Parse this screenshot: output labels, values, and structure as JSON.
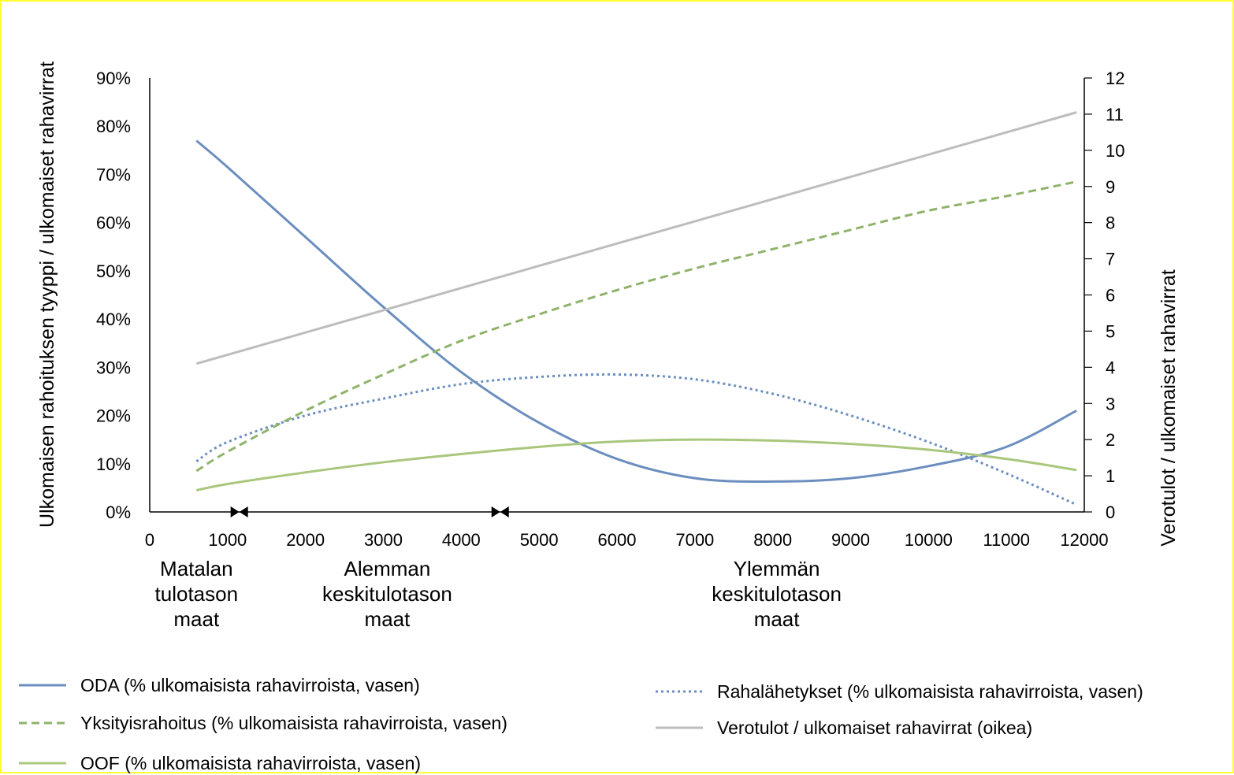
{
  "chart_data": {
    "type": "line",
    "y_left_label": "Ulkomaisen rahoituksen tyyppi / ulkomaiset rahavirrat",
    "y_right_label": "Verotulot / ulkomaiset rahavirrat",
    "x_ticks": [
      "0",
      "1000",
      "2000",
      "3000",
      "4000",
      "5000",
      "6000",
      "7000",
      "8000",
      "9000",
      "10000",
      "11000",
      "12000"
    ],
    "y_left_ticks": [
      "0%",
      "10%",
      "20%",
      "30%",
      "40%",
      "50%",
      "60%",
      "70%",
      "80%",
      "90%"
    ],
    "y_right_ticks": [
      "0",
      "1",
      "2",
      "3",
      "4",
      "5",
      "6",
      "7",
      "8",
      "9",
      "10",
      "11",
      "12"
    ],
    "xlim": [
      0,
      12000
    ],
    "ylim_left": [
      0,
      90
    ],
    "ylim_right": [
      0,
      12
    ],
    "region_labels": [
      {
        "lines": [
          "Matalan",
          "tulotason",
          "maat"
        ],
        "x": 600
      },
      {
        "lines": [
          "Alemman",
          "keskitulotason",
          "maat"
        ],
        "x": 3050
      },
      {
        "lines": [
          "Ylemmän",
          "keskitulotason",
          "maat"
        ],
        "x": 8050
      }
    ],
    "boundaries": [
      1150,
      4500
    ],
    "series": [
      {
        "name": "ODA (% ulkomaisista rahavirroista, vasen)",
        "axis": "left",
        "color": "#6c8ebf",
        "dash": "solid",
        "points": [
          [
            600,
            77
          ],
          [
            1000,
            71.5
          ],
          [
            2000,
            57
          ],
          [
            3000,
            42.5
          ],
          [
            4000,
            29
          ],
          [
            5000,
            18.5
          ],
          [
            6000,
            11
          ],
          [
            7000,
            7
          ],
          [
            8000,
            6.3
          ],
          [
            9000,
            7
          ],
          [
            10000,
            9.5
          ],
          [
            11000,
            13.5
          ],
          [
            11900,
            21
          ]
        ]
      },
      {
        "name": "Rahalähetykset (% ulkomaisista rahavirroista, vasen)",
        "axis": "left",
        "color": "#6c8ebf",
        "dash": "dotted",
        "points": [
          [
            600,
            10.5
          ],
          [
            1000,
            14.5
          ],
          [
            2000,
            20
          ],
          [
            3000,
            23.5
          ],
          [
            4000,
            26.5
          ],
          [
            5000,
            28
          ],
          [
            6000,
            28.5
          ],
          [
            7000,
            27.5
          ],
          [
            8000,
            24.5
          ],
          [
            9000,
            20
          ],
          [
            10000,
            14.5
          ],
          [
            11000,
            8
          ],
          [
            11900,
            1.5
          ]
        ]
      },
      {
        "name": "Yksityisrahoitus (% ulkomaisista rahavirroista, vasen)",
        "axis": "left",
        "color": "#8fb36b",
        "dash": "dashed",
        "points": [
          [
            600,
            8.5
          ],
          [
            1000,
            12.5
          ],
          [
            2000,
            21
          ],
          [
            3000,
            28.5
          ],
          [
            4000,
            35.5
          ],
          [
            5000,
            41
          ],
          [
            6000,
            46
          ],
          [
            7000,
            50.5
          ],
          [
            8000,
            54.5
          ],
          [
            9000,
            58.5
          ],
          [
            10000,
            62.5
          ],
          [
            11000,
            65.5
          ],
          [
            11900,
            68.5
          ]
        ]
      },
      {
        "name": "Verotulot / ulkomaiset rahavirrat (oikea)",
        "axis": "right",
        "color": "#bdbdbd",
        "dash": "solid",
        "points": [
          [
            600,
            4.1
          ],
          [
            11900,
            11.05
          ]
        ]
      },
      {
        "name": "OOF (% ulkomaisista rahavirroista, vasen)",
        "axis": "left",
        "color": "#a9c77c",
        "dash": "solid",
        "points": [
          [
            600,
            4.5
          ],
          [
            1000,
            5.8
          ],
          [
            2000,
            8.2
          ],
          [
            3000,
            10.3
          ],
          [
            4000,
            12
          ],
          [
            5000,
            13.5
          ],
          [
            6000,
            14.6
          ],
          [
            7000,
            15
          ],
          [
            8000,
            14.8
          ],
          [
            9000,
            14.1
          ],
          [
            10000,
            12.9
          ],
          [
            11000,
            11
          ],
          [
            11900,
            8.7
          ]
        ]
      }
    ],
    "legend": {
      "placement": "bottom",
      "items": [
        {
          "label": "ODA (% ulkomaisista rahavirroista, vasen)",
          "color": "#6c8ebf",
          "dash": "solid"
        },
        {
          "label": "Rahalähetykset (% ulkomaisista rahavirroista, vasen)",
          "color": "#6c8ebf",
          "dash": "dotted"
        },
        {
          "label": "Yksityisrahoitus (% ulkomaisista rahavirroista, vasen)",
          "color": "#8fb36b",
          "dash": "dashed"
        },
        {
          "label": "Verotulot / ulkomaiset rahavirrat (oikea)",
          "color": "#bdbdbd",
          "dash": "solid"
        },
        {
          "label": "OOF (% ulkomaisista rahavirroista, vasen)",
          "color": "#a9c77c",
          "dash": "solid"
        }
      ]
    }
  }
}
